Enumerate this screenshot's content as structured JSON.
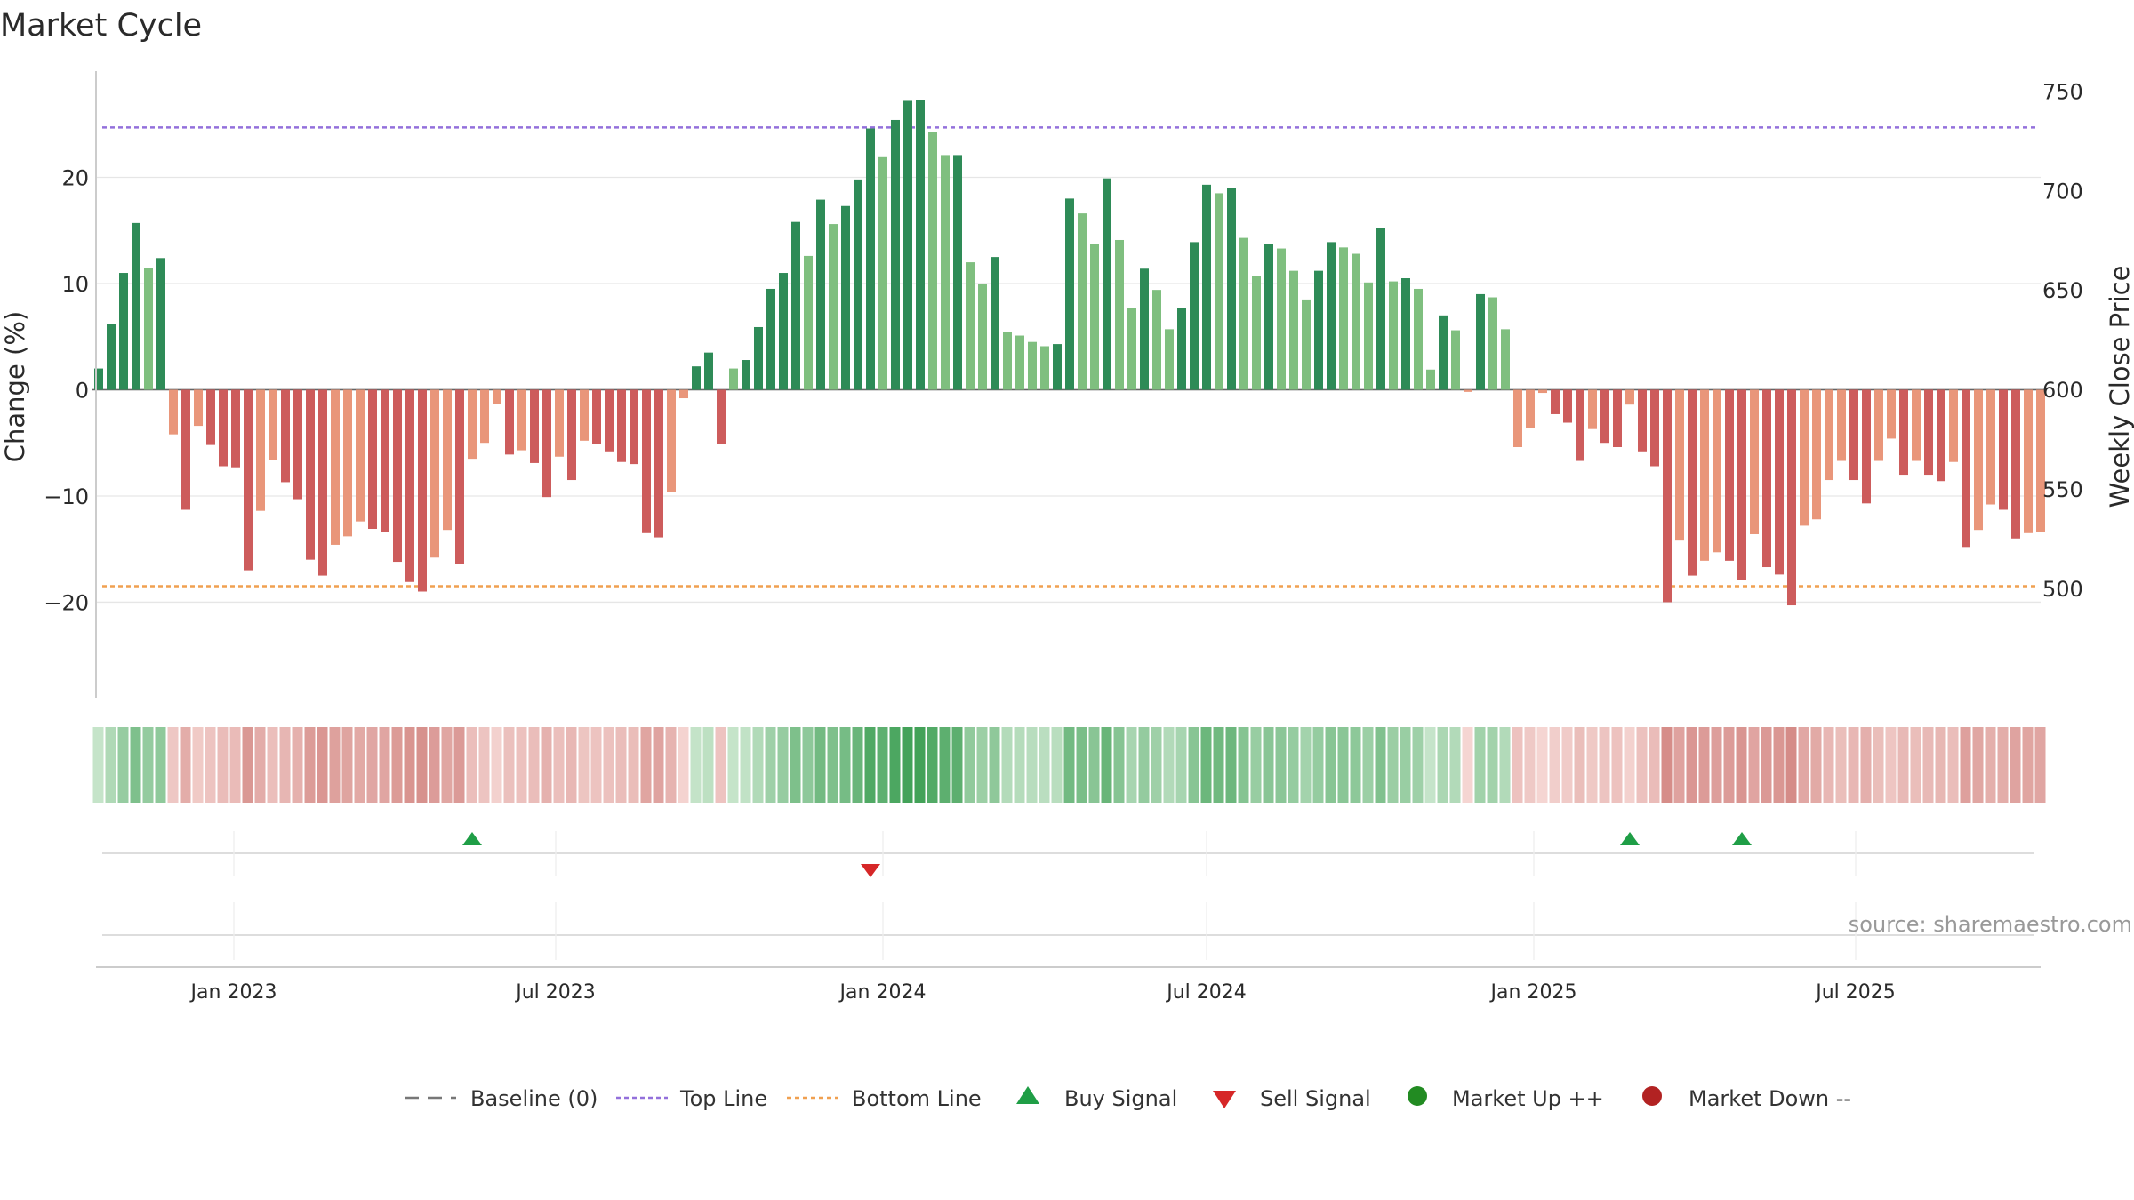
{
  "title": "Market Cycle",
  "source": "source: sharemaestro.com",
  "colors": {
    "pos_dark": "#2e8b57",
    "pos_light": "#7fbf7f",
    "neg_dark": "#cd5c5c",
    "neg_light": "#e9967a",
    "top_line": "#9370db",
    "bottom_line": "#f0a050",
    "buy": "#1f9e46",
    "sell": "#d62728",
    "up": "#228b22",
    "down": "#b22222"
  },
  "chart_data": {
    "type": "bar",
    "title": "Market Cycle",
    "ylabel_left": "Change (%)",
    "ylabel_right": "Weekly Close Price",
    "ylim_left": [
      -29,
      30
    ],
    "ylim_right": [
      445,
      760
    ],
    "yticks_left": [
      -20,
      -10,
      0,
      10,
      20
    ],
    "ytick_labels_left": [
      "−20",
      "−10",
      "0",
      "10",
      "20"
    ],
    "yticks_right": [
      500,
      550,
      600,
      650,
      700,
      750
    ],
    "x_range": [
      "2022-10-17",
      "2025-10-13"
    ],
    "xticks": [
      {
        "date": "2023-01-01",
        "label": "Jan 2023"
      },
      {
        "date": "2023-07-01",
        "label": "Jul 2023"
      },
      {
        "date": "2024-01-01",
        "label": "Jan 2024"
      },
      {
        "date": "2024-07-01",
        "label": "Jul 2024"
      },
      {
        "date": "2025-01-01",
        "label": "Jan 2025"
      },
      {
        "date": "2025-07-01",
        "label": "Jul 2025"
      }
    ],
    "start_date": "2022-10-17",
    "frequency": "weekly",
    "top_line": 24.7,
    "bottom_line": -18.5,
    "grid": true,
    "values": [
      2.0,
      6.2,
      11.0,
      15.7,
      11.5,
      12.4,
      -4.2,
      -11.3,
      -3.4,
      -5.2,
      -7.2,
      -7.3,
      -17.0,
      -11.4,
      -6.6,
      -8.7,
      -10.3,
      -16.0,
      -17.5,
      -14.6,
      -13.8,
      -12.4,
      -13.1,
      -13.4,
      -16.2,
      -18.1,
      -19.0,
      -15.8,
      -13.2,
      -16.4,
      -6.5,
      -5.0,
      -1.3,
      -6.1,
      -5.7,
      -6.9,
      -10.1,
      -6.3,
      -8.5,
      -4.8,
      -5.1,
      -5.8,
      -6.8,
      -7.0,
      -13.5,
      -13.9,
      -9.6,
      -0.8,
      2.2,
      3.5,
      -5.1,
      2.0,
      2.8,
      5.9,
      9.5,
      11.0,
      15.8,
      12.6,
      17.9,
      15.6,
      17.3,
      19.8,
      24.6,
      21.9,
      25.4,
      27.2,
      27.3,
      24.3,
      22.1,
      22.1,
      12.0,
      10.0,
      12.5,
      5.4,
      5.1,
      4.5,
      4.1,
      4.3,
      18.0,
      16.6,
      13.7,
      19.9,
      14.1,
      7.7,
      11.4,
      9.4,
      5.7,
      7.7,
      13.9,
      19.3,
      18.5,
      19.0,
      14.3,
      10.7,
      13.7,
      13.3,
      11.2,
      8.5,
      11.2,
      13.9,
      13.4,
      12.8,
      10.1,
      15.2,
      10.2,
      10.5,
      9.5,
      1.9,
      7.0,
      5.6,
      -0.2,
      9.0,
      8.7,
      5.7,
      -5.4,
      -3.6,
      -0.3,
      -2.3,
      -3.1,
      -6.7,
      -3.7,
      -5.0,
      -5.4,
      -1.4,
      -5.8,
      -7.2,
      -20.0,
      -14.2,
      -17.5,
      -16.1,
      -15.3,
      -16.1,
      -17.9,
      -13.6,
      -16.7,
      -17.4,
      -20.3,
      -12.8,
      -12.2,
      -8.5,
      -6.7,
      -8.5,
      -10.7,
      -6.7,
      -4.6,
      -8.0,
      -6.7,
      -8.0,
      -8.6,
      -6.8,
      -14.8,
      -13.2,
      -10.8,
      -11.3,
      -14.0,
      -13.5,
      -13.4
    ],
    "heat_strip": {
      "shows": "strength of change per week",
      "scale": "green = positive, red = negative"
    },
    "signals": [
      {
        "type": "buy",
        "date": "2023-05-15"
      },
      {
        "type": "sell",
        "date": "2023-12-25"
      },
      {
        "type": "buy",
        "date": "2025-02-24"
      },
      {
        "type": "buy",
        "date": "2025-04-28"
      }
    ],
    "legend": {
      "placement": "bottom",
      "items": [
        {
          "key": "baseline",
          "label": "Baseline (0)"
        },
        {
          "key": "top",
          "label": "Top Line"
        },
        {
          "key": "bottom",
          "label": "Bottom Line"
        },
        {
          "key": "buy",
          "label": "Buy Signal"
        },
        {
          "key": "sell",
          "label": "Sell Signal"
        },
        {
          "key": "up",
          "label": "Market Up ++"
        },
        {
          "key": "down",
          "label": "Market Down --"
        }
      ]
    }
  }
}
